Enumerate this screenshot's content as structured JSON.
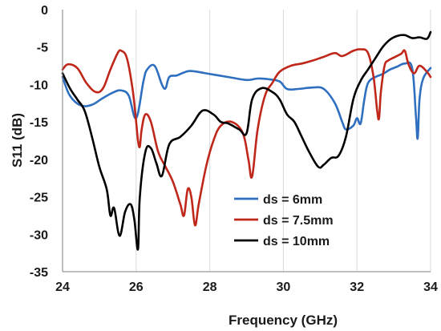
{
  "chart_data": {
    "type": "line",
    "title": "",
    "xlabel": "Frequency (GHz)",
    "ylabel": "S11 (dB)",
    "xlim": [
      24,
      34
    ],
    "ylim": [
      -35,
      0
    ],
    "xticks": [
      24,
      26,
      28,
      30,
      32,
      34
    ],
    "yticks": [
      0,
      -5,
      -10,
      -15,
      -20,
      -25,
      -30,
      -35
    ],
    "grid": "vertical",
    "legend_position": "lower-right",
    "series": [
      {
        "name": "ds = 6mm",
        "color": "#2f6fc0",
        "x": [
          24.0,
          24.2,
          24.5,
          24.8,
          25.1,
          25.4,
          25.6,
          25.8,
          26.0,
          26.2,
          26.3,
          26.5,
          26.7,
          26.8,
          26.9,
          27.1,
          27.3,
          27.5,
          28.0,
          28.5,
          29.0,
          29.3,
          29.6,
          29.9,
          30.1,
          30.4,
          30.8,
          31.1,
          31.4,
          31.6,
          31.7,
          31.9,
          32.0,
          32.1,
          32.2,
          32.3,
          32.5,
          32.7,
          32.9,
          33.1,
          33.3,
          33.5,
          33.6,
          33.65,
          33.7,
          33.8,
          34.0
        ],
        "y": [
          -9.0,
          -11.5,
          -12.8,
          -12.7,
          -11.8,
          -11.0,
          -10.8,
          -11.5,
          -14.5,
          -9.5,
          -8.0,
          -7.5,
          -10.0,
          -10.5,
          -9.0,
          -8.8,
          -8.4,
          -8.2,
          -8.6,
          -9.0,
          -9.4,
          -9.2,
          -9.3,
          -9.6,
          -10.6,
          -10.6,
          -10.4,
          -10.6,
          -12.5,
          -15.0,
          -16.0,
          -15.5,
          -14.5,
          -15.2,
          -12.0,
          -9.8,
          -9.0,
          -8.6,
          -8.0,
          -7.6,
          -7.2,
          -7.8,
          -14.0,
          -17.2,
          -12.0,
          -9.2,
          -7.8
        ]
      },
      {
        "name": "ds = 7.5mm",
        "color": "#c0271b",
        "x": [
          24.0,
          24.15,
          24.4,
          24.65,
          24.9,
          25.1,
          25.3,
          25.5,
          25.6,
          25.75,
          25.9,
          26.0,
          26.05,
          26.1,
          26.15,
          26.25,
          26.4,
          26.6,
          26.8,
          27.0,
          27.2,
          27.3,
          27.4,
          27.5,
          27.6,
          27.7,
          27.9,
          28.1,
          28.3,
          28.6,
          28.9,
          29.05,
          29.15,
          29.3,
          29.5,
          29.7,
          29.9,
          30.2,
          30.5,
          30.8,
          31.1,
          31.4,
          31.6,
          31.9,
          32.1,
          32.3,
          32.45,
          32.55,
          32.6,
          32.65,
          32.75,
          32.85,
          33.0,
          33.2,
          33.3,
          33.4,
          33.55,
          33.7,
          33.9,
          34.0
        ],
        "y": [
          -8.0,
          -7.3,
          -7.8,
          -9.8,
          -11.0,
          -10.5,
          -8.0,
          -5.8,
          -5.5,
          -6.5,
          -10.5,
          -15.0,
          -17.5,
          -18.3,
          -16.0,
          -14.0,
          -15.0,
          -19.0,
          -21.0,
          -23.0,
          -26.0,
          -27.5,
          -24.0,
          -25.0,
          -28.8,
          -26.0,
          -21.0,
          -17.5,
          -15.5,
          -15.0,
          -16.5,
          -20.0,
          -22.3,
          -16.0,
          -11.5,
          -9.8,
          -8.3,
          -7.5,
          -7.2,
          -6.8,
          -6.3,
          -5.8,
          -6.2,
          -5.5,
          -5.3,
          -5.8,
          -9.0,
          -13.5,
          -14.5,
          -11.0,
          -7.5,
          -6.8,
          -6.4,
          -5.9,
          -5.5,
          -7.3,
          -8.5,
          -7.5,
          -8.3,
          -9.0
        ]
      },
      {
        "name": "ds = 10mm",
        "color": "#000000",
        "x": [
          24.0,
          24.2,
          24.4,
          24.6,
          24.8,
          25.0,
          25.2,
          25.3,
          25.4,
          25.55,
          25.7,
          25.85,
          25.95,
          26.05,
          26.1,
          26.25,
          26.4,
          26.55,
          26.7,
          26.9,
          27.2,
          27.5,
          27.8,
          28.1,
          28.3,
          28.5,
          28.8,
          29.0,
          29.15,
          29.4,
          29.7,
          29.9,
          30.1,
          30.3,
          30.5,
          30.7,
          30.95,
          31.1,
          31.3,
          31.5,
          31.7,
          31.9,
          32.1,
          32.3,
          32.5,
          32.7,
          32.9,
          33.1,
          33.3,
          33.5,
          33.7,
          33.9,
          34.0
        ],
        "y": [
          -8.5,
          -10.5,
          -12.0,
          -13.5,
          -17.0,
          -21.0,
          -24.0,
          -27.5,
          -26.5,
          -30.2,
          -27.0,
          -26.0,
          -28.0,
          -32.0,
          -25.0,
          -19.0,
          -18.5,
          -20.5,
          -22.2,
          -18.0,
          -17.0,
          -15.5,
          -13.5,
          -14.0,
          -15.0,
          -15.2,
          -16.0,
          -16.5,
          -12.0,
          -10.5,
          -11.0,
          -12.0,
          -14.0,
          -15.0,
          -17.0,
          -19.0,
          -21.0,
          -20.7,
          -19.8,
          -19.5,
          -17.0,
          -12.0,
          -9.5,
          -8.0,
          -6.5,
          -5.0,
          -4.0,
          -3.5,
          -3.4,
          -3.8,
          -3.7,
          -3.9,
          -3.0
        ]
      }
    ]
  }
}
